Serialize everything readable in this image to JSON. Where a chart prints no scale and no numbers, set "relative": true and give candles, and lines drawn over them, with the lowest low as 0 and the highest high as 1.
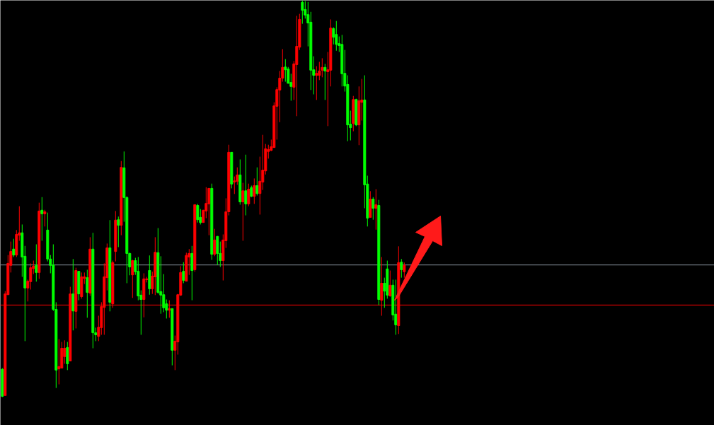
{
  "chart_data": {
    "type": "candlestick",
    "relative": true,
    "categories": [
      null,
      null,
      null,
      null,
      null,
      null,
      null,
      null,
      null,
      null,
      null,
      null,
      null,
      null,
      null,
      null,
      null,
      null,
      null,
      null,
      null,
      null,
      null,
      null,
      null,
      null,
      null,
      null,
      null,
      null,
      null,
      null,
      null,
      null,
      null,
      null,
      null,
      null,
      null,
      null,
      null,
      null,
      null,
      null,
      null,
      null,
      null,
      null,
      null,
      null,
      null,
      null,
      null,
      null,
      null,
      null,
      null,
      null,
      null,
      null,
      null,
      null,
      null,
      null,
      null,
      null,
      null,
      null,
      null,
      null,
      null,
      null,
      null,
      null,
      null,
      null,
      null,
      null,
      null,
      null,
      null,
      null,
      null,
      null,
      null,
      null,
      null,
      null,
      null,
      null,
      null,
      null,
      null,
      null,
      null,
      null,
      null,
      null,
      null,
      null,
      null,
      null,
      null,
      null,
      null,
      null,
      null,
      null,
      null,
      null,
      null,
      null,
      null,
      null,
      null,
      null,
      null,
      null,
      null,
      null,
      null,
      null,
      null,
      null,
      null,
      null,
      null,
      null,
      null,
      null,
      null,
      null,
      null,
      null,
      null,
      null,
      null,
      null,
      null,
      null,
      null,
      null,
      null
    ],
    "ohlc": [
      [
        0.07,
        0.073,
        0.0,
        0.002
      ],
      [
        0.004,
        0.267,
        0.004,
        0.26
      ],
      [
        0.258,
        0.358,
        0.258,
        0.337
      ],
      [
        0.332,
        0.392,
        0.314,
        0.367
      ],
      [
        0.373,
        0.399,
        0.353,
        0.358
      ],
      [
        0.358,
        0.421,
        0.353,
        0.41
      ],
      [
        0.408,
        0.481,
        0.394,
        0.414
      ],
      [
        0.414,
        0.435,
        0.303,
        0.353
      ],
      [
        0.355,
        0.381,
        0.141,
        0.275
      ],
      [
        0.275,
        0.296,
        0.241,
        0.292
      ],
      [
        0.291,
        0.337,
        0.271,
        0.326
      ],
      [
        0.324,
        0.344,
        0.31,
        0.33
      ],
      [
        0.332,
        0.385,
        0.291,
        0.314
      ],
      [
        0.314,
        0.49,
        0.298,
        0.469
      ],
      [
        0.471,
        0.504,
        0.394,
        0.462
      ],
      [
        0.462,
        0.472,
        0.43,
        0.467
      ],
      [
        0.421,
        0.465,
        0.342,
        0.348
      ],
      [
        0.348,
        0.358,
        0.312,
        0.332
      ],
      [
        0.333,
        0.385,
        0.217,
        0.221
      ],
      [
        0.221,
        0.239,
        0.023,
        0.068
      ],
      [
        0.071,
        0.146,
        0.032,
        0.077
      ],
      [
        0.073,
        0.139,
        0.073,
        0.123
      ],
      [
        0.102,
        0.143,
        0.084,
        0.123
      ],
      [
        0.125,
        0.139,
        0.068,
        0.084
      ],
      [
        0.091,
        0.278,
        0.091,
        0.26
      ],
      [
        0.26,
        0.348,
        0.168,
        0.217
      ],
      [
        0.216,
        0.326,
        0.173,
        0.319
      ],
      [
        0.317,
        0.317,
        0.244,
        0.26
      ],
      [
        0.253,
        0.314,
        0.248,
        0.303
      ],
      [
        0.299,
        0.314,
        0.285,
        0.303
      ],
      [
        0.301,
        0.321,
        0.2,
        0.264
      ],
      [
        0.262,
        0.403,
        0.255,
        0.373
      ],
      [
        0.373,
        0.414,
        0.123,
        0.162
      ],
      [
        0.162,
        0.175,
        0.141,
        0.157
      ],
      [
        0.153,
        0.205,
        0.141,
        0.176
      ],
      [
        0.175,
        0.239,
        0.157,
        0.228
      ],
      [
        0.226,
        0.337,
        0.157,
        0.303
      ],
      [
        0.301,
        0.387,
        0.269,
        0.376
      ],
      [
        0.376,
        0.446,
        0.216,
        0.239
      ],
      [
        0.235,
        0.344,
        0.225,
        0.339
      ],
      [
        0.367,
        0.469,
        0.342,
        0.446
      ],
      [
        0.447,
        0.455,
        0.378,
        0.433
      ],
      [
        0.433,
        0.595,
        0.408,
        0.579
      ],
      [
        0.578,
        0.619,
        0.442,
        0.503
      ],
      [
        0.503,
        0.506,
        0.287,
        0.362
      ],
      [
        0.362,
        0.364,
        0.307,
        0.328
      ],
      [
        0.308,
        0.346,
        0.25,
        0.344
      ],
      [
        0.344,
        0.351,
        0.308,
        0.316
      ],
      [
        0.317,
        0.353,
        0.244,
        0.255
      ],
      [
        0.257,
        0.269,
        0.157,
        0.246
      ],
      [
        0.246,
        0.312,
        0.201,
        0.298
      ],
      [
        0.296,
        0.303,
        0.289,
        0.298
      ],
      [
        0.319,
        0.357,
        0.258,
        0.273
      ],
      [
        0.273,
        0.316,
        0.26,
        0.305
      ],
      [
        0.303,
        0.403,
        0.257,
        0.365
      ],
      [
        0.364,
        0.426,
        0.26,
        0.264
      ],
      [
        0.266,
        0.355,
        0.21,
        0.257
      ],
      [
        0.258,
        0.31,
        0.214,
        0.225
      ],
      [
        0.235,
        0.246,
        0.198,
        0.219
      ],
      [
        0.219,
        0.244,
        0.2,
        0.223
      ],
      [
        0.223,
        0.223,
        0.08,
        0.118
      ],
      [
        0.118,
        0.155,
        0.068,
        0.141
      ],
      [
        0.139,
        0.26,
        0.107,
        0.258
      ],
      [
        0.257,
        0.33,
        0.255,
        0.314
      ],
      [
        0.317,
        0.34,
        0.287,
        0.294
      ],
      [
        0.292,
        0.364,
        0.292,
        0.357
      ],
      [
        0.353,
        0.373,
        0.308,
        0.362
      ],
      [
        0.362,
        0.381,
        0.244,
        0.319
      ],
      [
        0.321,
        0.485,
        0.316,
        0.485
      ],
      [
        0.483,
        0.487,
        0.44,
        0.447
      ],
      [
        0.453,
        0.474,
        0.435,
        0.44
      ],
      [
        0.44,
        0.472,
        0.44,
        0.471
      ],
      [
        0.469,
        0.529,
        0.451,
        0.488
      ],
      [
        0.487,
        0.526,
        0.408,
        0.526
      ],
      [
        0.526,
        0.538,
        0.346,
        0.36
      ],
      [
        0.36,
        0.424,
        0.355,
        0.396
      ],
      [
        0.405,
        0.406,
        0.333,
        0.362
      ],
      [
        0.362,
        0.392,
        0.328,
        0.344
      ],
      [
        0.344,
        0.41,
        0.294,
        0.396
      ],
      [
        0.394,
        0.501,
        0.376,
        0.467
      ],
      [
        0.467,
        0.636,
        0.458,
        0.617
      ],
      [
        0.617,
        0.617,
        0.526,
        0.537
      ],
      [
        0.542,
        0.556,
        0.512,
        0.545
      ],
      [
        0.544,
        0.579,
        0.535,
        0.56
      ],
      [
        0.56,
        0.599,
        0.485,
        0.492
      ],
      [
        0.492,
        0.54,
        0.394,
        0.52
      ],
      [
        0.52,
        0.611,
        0.458,
        0.487
      ],
      [
        0.487,
        0.538,
        0.481,
        0.524
      ],
      [
        0.528,
        0.533,
        0.504,
        0.506
      ],
      [
        0.506,
        0.551,
        0.487,
        0.533
      ],
      [
        0.533,
        0.579,
        0.508,
        0.513
      ],
      [
        0.513,
        0.606,
        0.46,
        0.544
      ],
      [
        0.542,
        0.661,
        0.522,
        0.572
      ],
      [
        0.57,
        0.638,
        0.561,
        0.626
      ],
      [
        0.619,
        0.636,
        0.601,
        0.624
      ],
      [
        0.622,
        0.649,
        0.62,
        0.631
      ],
      [
        0.629,
        0.743,
        0.629,
        0.734
      ],
      [
        0.733,
        0.781,
        0.649,
        0.775
      ],
      [
        0.774,
        0.822,
        0.693,
        0.804
      ],
      [
        0.804,
        0.877,
        0.795,
        0.831
      ],
      [
        0.832,
        0.852,
        0.795,
        0.825
      ],
      [
        0.827,
        0.832,
        0.79,
        0.791
      ],
      [
        0.793,
        0.815,
        0.747,
        0.783
      ],
      [
        0.781,
        0.847,
        0.749,
        0.84
      ],
      [
        0.838,
        0.961,
        0.708,
        0.884
      ],
      [
        0.882,
        0.966,
        0.875,
        0.952
      ],
      [
        0.995,
        1.0,
        0.941,
        0.975
      ],
      [
        0.977,
        0.998,
        0.954,
        0.963
      ],
      [
        0.964,
        0.996,
        0.884,
        0.943
      ],
      [
        0.945,
        0.971,
        0.774,
        0.824
      ],
      [
        0.825,
        0.859,
        0.763,
        0.811
      ],
      [
        0.811,
        0.834,
        0.749,
        0.816
      ],
      [
        0.811,
        0.845,
        0.799,
        0.822
      ],
      [
        0.824,
        0.854,
        0.806,
        0.831
      ],
      [
        0.831,
        0.84,
        0.749,
        0.822
      ],
      [
        0.82,
        0.87,
        0.683,
        0.825
      ],
      [
        0.824,
        0.952,
        0.783,
        0.93
      ],
      [
        0.929,
        0.932,
        0.889,
        0.907
      ],
      [
        0.914,
        0.948,
        0.873,
        0.889
      ],
      [
        0.891,
        0.909,
        0.87,
        0.886
      ],
      [
        0.889,
        0.913,
        0.783,
        0.815
      ],
      [
        0.816,
        0.875,
        0.77,
        0.784
      ],
      [
        0.788,
        0.811,
        0.645,
        0.686
      ],
      [
        0.688,
        0.722,
        0.647,
        0.679
      ],
      [
        0.69,
        0.759,
        0.67,
        0.75
      ],
      [
        0.75,
        0.752,
        0.683,
        0.686
      ],
      [
        0.686,
        0.783,
        0.635,
        0.747
      ],
      [
        0.743,
        0.802,
        0.697,
        0.749
      ],
      [
        0.749,
        0.811,
        0.476,
        0.535
      ],
      [
        0.537,
        0.558,
        0.43,
        0.451
      ],
      [
        0.453,
        0.519,
        0.453,
        0.499
      ],
      [
        0.499,
        0.504,
        0.447,
        0.476
      ],
      [
        0.476,
        0.524,
        0.422,
        0.485
      ],
      [
        0.483,
        0.497,
        0.232,
        0.246
      ],
      [
        0.244,
        0.353,
        0.205,
        0.287
      ],
      [
        0.287,
        0.301,
        0.225,
        0.267
      ],
      [
        0.323,
        0.344,
        0.248,
        0.257
      ],
      [
        0.255,
        0.319,
        0.253,
        0.282
      ],
      [
        0.282,
        0.296,
        0.193,
        0.207
      ],
      [
        0.209,
        0.296,
        0.157,
        0.182
      ],
      [
        0.18,
        0.38,
        0.159,
        0.339
      ],
      [
        0.34,
        0.348,
        0.301,
        0.321
      ],
      [
        0.316,
        0.339,
        0.301,
        0.332
      ]
    ],
    "colors": [
      "#00ff00",
      "#ff0000",
      "#ff0000",
      "#ff0000",
      "#00ff00",
      "#ff0000",
      "#ff0000",
      "#00ff00",
      "#00ff00",
      "#ff0000",
      "#ff0000",
      "#ff0000",
      "#00ff00",
      "#ff0000",
      "#00ff00",
      "#ff0000",
      "#00ff00",
      "#00ff00",
      "#00ff00",
      "#00ff00",
      "#ff0000",
      "#ff0000",
      "#ff0000",
      "#00ff00",
      "#ff0000",
      "#00ff00",
      "#ff0000",
      "#00ff00",
      "#ff0000",
      "#ff0000",
      "#00ff00",
      "#ff0000",
      "#00ff00",
      "#00ff00",
      "#ff0000",
      "#ff0000",
      "#ff0000",
      "#ff0000",
      "#00ff00",
      "#ff0000",
      "#ff0000",
      "#00ff00",
      "#ff0000",
      "#00ff00",
      "#00ff00",
      "#00ff00",
      "#ff0000",
      "#00ff00",
      "#00ff00",
      "#00ff00",
      "#ff0000",
      "#ff0000",
      "#00ff00",
      "#ff0000",
      "#ff0000",
      "#00ff00",
      "#00ff00",
      "#00ff00",
      "#00ff00",
      "#ff0000",
      "#00ff00",
      "#ff0000",
      "#ff0000",
      "#ff0000",
      "#00ff00",
      "#ff0000",
      "#ff0000",
      "#00ff00",
      "#ff0000",
      "#00ff00",
      "#00ff00",
      "#ff0000",
      "#ff0000",
      "#ff0000",
      "#00ff00",
      "#ff0000",
      "#00ff00",
      "#00ff00",
      "#ff0000",
      "#ff0000",
      "#ff0000",
      "#00ff00",
      "#ff0000",
      "#ff0000",
      "#00ff00",
      "#ff0000",
      "#00ff00",
      "#ff0000",
      "#00ff00",
      "#ff0000",
      "#00ff00",
      "#ff0000",
      "#ff0000",
      "#ff0000",
      "#ff0000",
      "#ff0000",
      "#ff0000",
      "#ff0000",
      "#ff0000",
      "#ff0000",
      "#00ff00",
      "#00ff00",
      "#00ff00",
      "#ff0000",
      "#ff0000",
      "#ff0000",
      "#00ff00",
      "#00ff00",
      "#00ff00",
      "#00ff00",
      "#00ff00",
      "#ff0000",
      "#ff0000",
      "#ff0000",
      "#00ff00",
      "#ff0000",
      "#ff0000",
      "#00ff00",
      "#00ff00",
      "#00ff00",
      "#00ff00",
      "#00ff00",
      "#00ff00",
      "#00ff00",
      "#ff0000",
      "#00ff00",
      "#ff0000",
      "#ff0000",
      "#00ff00",
      "#00ff00",
      "#ff0000",
      "#00ff00",
      "#ff0000",
      "#00ff00",
      "#ff0000",
      "#00ff00",
      "#00ff00",
      "#ff0000",
      "#00ff00",
      "#00ff00",
      "#ff0000",
      "#00ff00",
      "#ff0000"
    ],
    "ref_lines": [
      {
        "axis": "y",
        "value": 0.333,
        "color": "#8c96a0"
      },
      {
        "axis": "y",
        "value": 0.232,
        "color": "#ff0000"
      }
    ]
  }
}
